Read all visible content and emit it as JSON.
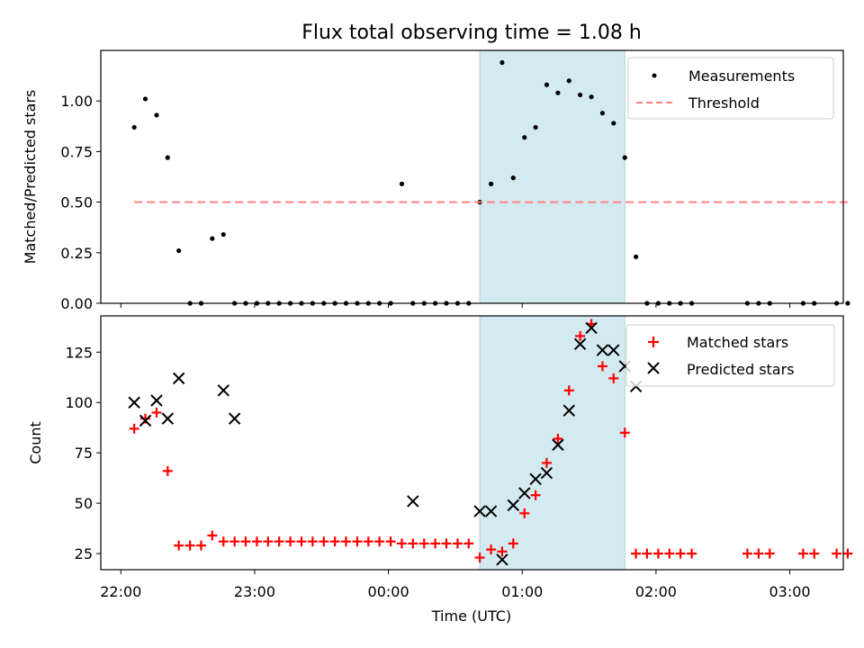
{
  "chart_data": [
    {
      "type": "scatter",
      "title": "Flux total observing time = 1.08 h",
      "xlabel": "",
      "ylabel": "Matched/Predicted stars",
      "xlim": [
        -0.15,
        5.4
      ],
      "ylim": [
        0,
        1.25
      ],
      "yticks": [
        "0.00",
        "0.25",
        "0.50",
        "0.75",
        "1.00"
      ],
      "ytick_values": [
        0,
        0.25,
        0.5,
        0.75,
        1.0
      ],
      "grid": false,
      "legend_position": "upper-right",
      "highlight_span": [
        2.683,
        3.767
      ],
      "highlight_color": "#d4eaf1",
      "series": [
        {
          "name": "Measurements",
          "marker": "dot",
          "color": "#000000",
          "x": [
            0.1,
            0.183,
            0.267,
            0.35,
            0.433,
            0.517,
            0.6,
            0.683,
            0.767,
            0.85,
            0.933,
            1.017,
            1.1,
            1.183,
            1.267,
            1.35,
            1.433,
            1.517,
            1.6,
            1.683,
            1.767,
            1.85,
            1.933,
            2.017,
            2.1,
            2.183,
            2.267,
            2.35,
            2.433,
            2.517,
            2.6,
            2.683,
            2.767,
            2.85,
            2.933,
            3.017,
            3.1,
            3.183,
            3.267,
            3.35,
            3.433,
            3.517,
            3.6,
            3.683,
            3.767,
            3.85,
            3.933,
            4.017,
            4.1,
            4.183,
            4.267,
            4.683,
            4.767,
            4.85,
            5.1,
            5.183,
            5.35,
            5.433
          ],
          "y": [
            0.87,
            1.01,
            0.93,
            0.72,
            0.26,
            0,
            0,
            0.32,
            0.34,
            0,
            0,
            0,
            0,
            0,
            0,
            0,
            0,
            0,
            0,
            0,
            0,
            0,
            0,
            0,
            0.59,
            0,
            0,
            0,
            0,
            0,
            0,
            0.5,
            0.59,
            1.19,
            0.62,
            0.82,
            0.87,
            1.08,
            1.04,
            1.1,
            1.03,
            1.02,
            0.94,
            0.89,
            0.72,
            0.23,
            0,
            0,
            0,
            0,
            0,
            0,
            0,
            0,
            0,
            0,
            0,
            0
          ]
        },
        {
          "name": "Threshold",
          "marker": "dashed-line",
          "color": "#ff8080",
          "x": [
            0.1,
            5.433
          ],
          "y": [
            0.5,
            0.5
          ]
        }
      ]
    },
    {
      "type": "scatter",
      "title": "",
      "xlabel": "Time (UTC)",
      "ylabel": "Count",
      "xlim": [
        -0.15,
        5.4
      ],
      "ylim": [
        17,
        143
      ],
      "yticks": [
        "25",
        "50",
        "75",
        "100",
        "125"
      ],
      "ytick_values": [
        25,
        50,
        75,
        100,
        125
      ],
      "xticks": [
        "22:00",
        "23:00",
        "00:00",
        "01:00",
        "02:00",
        "03:00"
      ],
      "xtick_values": [
        0,
        1,
        2,
        3,
        4,
        5
      ],
      "grid": false,
      "legend_position": "upper-right",
      "highlight_span": [
        2.683,
        3.767
      ],
      "highlight_color": "#d4eaf1",
      "series": [
        {
          "name": "Matched stars",
          "marker": "plus",
          "color": "#ff0000",
          "x": [
            0.1,
            0.183,
            0.267,
            0.35,
            0.433,
            0.517,
            0.6,
            0.683,
            0.767,
            0.85,
            0.933,
            1.017,
            1.1,
            1.183,
            1.267,
            1.35,
            1.433,
            1.517,
            1.6,
            1.683,
            1.767,
            1.85,
            1.933,
            2.017,
            2.1,
            2.183,
            2.267,
            2.35,
            2.433,
            2.517,
            2.6,
            2.683,
            2.767,
            2.85,
            2.933,
            3.017,
            3.1,
            3.183,
            3.267,
            3.35,
            3.433,
            3.517,
            3.6,
            3.683,
            3.767,
            3.85,
            3.933,
            4.017,
            4.1,
            4.183,
            4.267,
            4.683,
            4.767,
            4.85,
            5.1,
            5.183,
            5.35,
            5.433
          ],
          "y": [
            87,
            92,
            95,
            66,
            29,
            29,
            29,
            34,
            31,
            31,
            31,
            31,
            31,
            31,
            31,
            31,
            31,
            31,
            31,
            31,
            31,
            31,
            31,
            31,
            30,
            30,
            30,
            30,
            30,
            30,
            30,
            23,
            27,
            26,
            30,
            45,
            54,
            70,
            82,
            106,
            133,
            139,
            118,
            112,
            85,
            25,
            25,
            25,
            25,
            25,
            25,
            25,
            25,
            25,
            25,
            25,
            25,
            25
          ]
        },
        {
          "name": "Predicted stars",
          "marker": "x",
          "color": "#000000",
          "x": [
            0.1,
            0.183,
            0.267,
            0.35,
            0.433,
            0.767,
            0.85,
            2.183,
            2.683,
            2.767,
            2.85,
            2.933,
            3.017,
            3.1,
            3.183,
            3.267,
            3.35,
            3.433,
            3.517,
            3.6,
            3.683,
            3.767,
            3.85
          ],
          "y": [
            100,
            91,
            101,
            92,
            112,
            106,
            92,
            51,
            46,
            46,
            22,
            49,
            55,
            62,
            65,
            79,
            96,
            129,
            137,
            126,
            126,
            118,
            108
          ]
        }
      ]
    }
  ]
}
